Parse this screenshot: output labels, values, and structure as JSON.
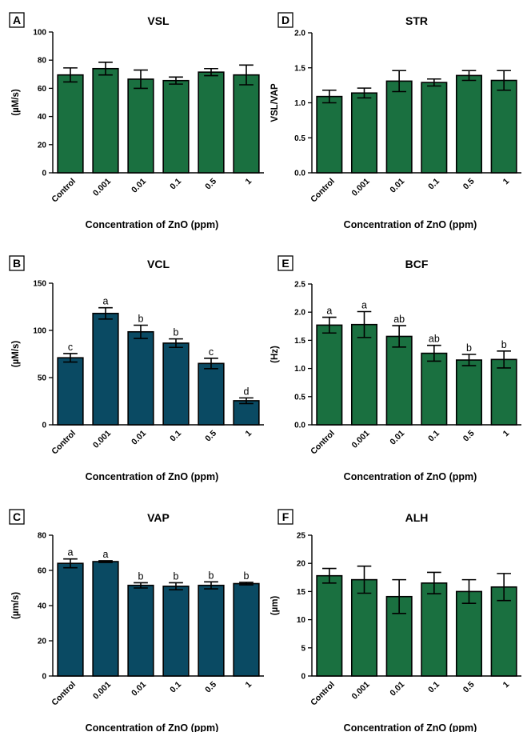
{
  "figure": {
    "panels": [
      {
        "letter": "A",
        "chart_data": {
          "type": "bar",
          "title": "VSL",
          "xlabel": "Concentration of ZnO (ppm)",
          "ylabel": "(µM/s)",
          "categories": [
            "Control",
            "0.001",
            "0.01",
            "0.1",
            "0.5",
            "1"
          ],
          "values": [
            69.5,
            74,
            66.5,
            65.5,
            71.5,
            69.5
          ],
          "errors": [
            5,
            4.5,
            6.5,
            2.5,
            2.5,
            7
          ],
          "significance": [],
          "ylim": [
            0,
            100
          ],
          "yticks": [
            "0",
            "20",
            "40",
            "60",
            "80",
            "100"
          ],
          "bar_color": "#1a7040"
        }
      },
      {
        "letter": "D",
        "chart_data": {
          "type": "bar",
          "title": "STR",
          "xlabel": "Concentration of ZnO (ppm)",
          "ylabel": "VSL/VAP",
          "categories": [
            "Control",
            "0.001",
            "0.01",
            "0.1",
            "0.5",
            "1"
          ],
          "values": [
            1.09,
            1.14,
            1.31,
            1.29,
            1.39,
            1.32
          ],
          "errors": [
            0.09,
            0.07,
            0.15,
            0.05,
            0.07,
            0.14
          ],
          "significance": [],
          "ylim": [
            0,
            2
          ],
          "yticks": [
            "0.0",
            "0.5",
            "1.0",
            "1.5",
            "2.0"
          ],
          "bar_color": "#1a7040"
        }
      },
      {
        "letter": "B",
        "chart_data": {
          "type": "bar",
          "title": "VCL",
          "xlabel": "Concentration of ZnO (ppm)",
          "ylabel": "(µM/s)",
          "categories": [
            "Control",
            "0.001",
            "0.01",
            "0.1",
            "0.5",
            "1"
          ],
          "values": [
            71,
            118,
            98.5,
            86.5,
            65,
            25.5
          ],
          "errors": [
            4.5,
            6,
            7,
            4.5,
            5.5,
            3
          ],
          "significance": [
            "c",
            "a",
            "b",
            "b",
            "c",
            "d"
          ],
          "ylim": [
            0,
            150
          ],
          "yticks": [
            "0",
            "50",
            "100",
            "150"
          ],
          "bar_color": "#0a4a63"
        }
      },
      {
        "letter": "E",
        "chart_data": {
          "type": "bar",
          "title": "BCF",
          "xlabel": "Concentration of ZnO (ppm)",
          "ylabel": "(Hz)",
          "categories": [
            "Control",
            "0.001",
            "0.01",
            "0.1",
            "0.5",
            "1"
          ],
          "values": [
            1.77,
            1.78,
            1.57,
            1.27,
            1.15,
            1.16
          ],
          "errors": [
            0.14,
            0.23,
            0.19,
            0.14,
            0.1,
            0.15
          ],
          "significance": [
            "a",
            "a",
            "ab",
            "ab",
            "b",
            "b"
          ],
          "ylim": [
            0,
            2.5
          ],
          "yticks": [
            "0.0",
            "0.5",
            "1.0",
            "1.5",
            "2.0",
            "2.5"
          ],
          "bar_color": "#1a7040"
        }
      },
      {
        "letter": "C",
        "chart_data": {
          "type": "bar",
          "title": "VAP",
          "xlabel": "Concentration of ZnO (ppm)",
          "ylabel": "(µm/s)",
          "categories": [
            "Control",
            "0.001",
            "0.01",
            "0.1",
            "0.5",
            "1"
          ],
          "values": [
            64,
            65,
            51.5,
            51,
            51.5,
            52.5
          ],
          "errors": [
            2.5,
            0.5,
            1.5,
            2,
            2,
            0.7
          ],
          "significance": [
            "a",
            "a",
            "b",
            "b",
            "b",
            "b"
          ],
          "ylim": [
            0,
            80
          ],
          "yticks": [
            "0",
            "20",
            "40",
            "60",
            "80"
          ],
          "bar_color": "#0a4a63"
        }
      },
      {
        "letter": "F",
        "chart_data": {
          "type": "bar",
          "title": "ALH",
          "xlabel": "Concentration of ZnO (ppm)",
          "ylabel": "(µm)",
          "categories": [
            "Control",
            "0.001",
            "0.01",
            "0.1",
            "0.5",
            "1"
          ],
          "values": [
            17.8,
            17.1,
            14.1,
            16.5,
            15,
            15.8
          ],
          "errors": [
            1.3,
            2.4,
            3,
            1.9,
            2.1,
            2.4
          ],
          "significance": [],
          "ylim": [
            0,
            25
          ],
          "yticks": [
            "0",
            "5",
            "10",
            "15",
            "20",
            "25"
          ],
          "bar_color": "#1a7040"
        }
      }
    ]
  }
}
